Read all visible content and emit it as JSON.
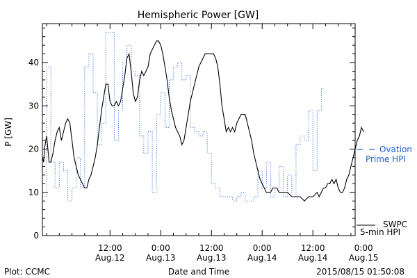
{
  "chart_data": {
    "type": "line",
    "title": "Hemispheric Power [GW]",
    "ylabel": "P [GW]",
    "xlabel": "Date and Time",
    "ylim": [
      0,
      49
    ],
    "yticks": [
      0,
      10,
      20,
      30,
      40
    ],
    "xlim_hours": [
      -4,
      70
    ],
    "xticks": [
      {
        "hour": 12,
        "time": "12:00",
        "date": "Aug.12"
      },
      {
        "hour": 24,
        "time": "0:00",
        "date": "Aug.13"
      },
      {
        "hour": 36,
        "time": "12:00",
        "date": "Aug.13"
      },
      {
        "hour": 48,
        "time": "0:00",
        "date": "Aug.14"
      },
      {
        "hour": 60,
        "time": "12:00",
        "date": "Aug.14"
      },
      {
        "hour": 72,
        "time": "0:00",
        "date": "Aug.15"
      }
    ],
    "series": [
      {
        "name": "SWPC 5-min HPI",
        "label_line1": "SWPC",
        "label_line2": "5-min HPI",
        "color": "#000000",
        "style": "solid",
        "points": [
          [
            -4,
            18
          ],
          [
            -3.7,
            17
          ],
          [
            -3.5,
            20
          ],
          [
            -3.2,
            22
          ],
          [
            -3,
            23
          ],
          [
            -2.7,
            20
          ],
          [
            -2.4,
            17
          ],
          [
            -2,
            17
          ],
          [
            -1.5,
            19
          ],
          [
            -1,
            22
          ],
          [
            -0.5,
            24
          ],
          [
            0,
            25
          ],
          [
            0.5,
            22
          ],
          [
            1,
            24
          ],
          [
            1.5,
            26
          ],
          [
            2,
            27
          ],
          [
            2.5,
            26
          ],
          [
            3,
            22
          ],
          [
            3.5,
            18
          ],
          [
            4,
            16
          ],
          [
            4.5,
            14
          ],
          [
            5,
            13
          ],
          [
            5.5,
            12
          ],
          [
            6,
            11
          ],
          [
            6.5,
            11
          ],
          [
            7,
            13
          ],
          [
            7.5,
            14
          ],
          [
            8,
            16
          ],
          [
            8.5,
            18
          ],
          [
            9,
            21
          ],
          [
            9.5,
            25
          ],
          [
            10,
            29
          ],
          [
            10.5,
            32
          ],
          [
            11,
            35
          ],
          [
            11.5,
            35
          ],
          [
            12,
            31
          ],
          [
            12.5,
            30
          ],
          [
            13,
            30
          ],
          [
            13.5,
            31
          ],
          [
            14,
            30
          ],
          [
            14.5,
            31
          ],
          [
            15,
            34
          ],
          [
            15.5,
            37
          ],
          [
            16,
            41
          ],
          [
            16.5,
            42
          ],
          [
            17,
            38
          ],
          [
            17.5,
            33
          ],
          [
            18,
            31
          ],
          [
            18.5,
            32
          ],
          [
            19,
            36
          ],
          [
            19.5,
            38
          ],
          [
            20,
            37
          ],
          [
            20.5,
            38
          ],
          [
            21,
            39
          ],
          [
            21.5,
            42
          ],
          [
            22,
            43
          ],
          [
            22.5,
            44
          ],
          [
            23,
            45
          ],
          [
            23.5,
            45
          ],
          [
            24,
            44
          ],
          [
            24.5,
            42
          ],
          [
            25,
            39
          ],
          [
            25.5,
            36
          ],
          [
            26,
            32
          ],
          [
            26.5,
            29
          ],
          [
            27,
            27
          ],
          [
            27.5,
            25
          ],
          [
            28,
            24
          ],
          [
            28.5,
            23
          ],
          [
            29,
            21
          ],
          [
            29.5,
            22
          ],
          [
            30,
            25
          ],
          [
            30.5,
            28
          ],
          [
            31,
            31
          ],
          [
            31.5,
            33
          ],
          [
            32,
            35
          ],
          [
            32.5,
            37
          ],
          [
            33,
            39
          ],
          [
            33.5,
            40
          ],
          [
            34,
            41
          ],
          [
            34.5,
            42
          ],
          [
            35,
            42
          ],
          [
            35.5,
            42
          ],
          [
            36,
            42
          ],
          [
            36.5,
            42
          ],
          [
            37,
            41
          ],
          [
            37.5,
            39
          ],
          [
            38,
            35
          ],
          [
            38.5,
            30
          ],
          [
            39,
            27
          ],
          [
            39.5,
            24
          ],
          [
            40,
            25
          ],
          [
            40.5,
            24
          ],
          [
            41,
            25
          ],
          [
            41.5,
            24
          ],
          [
            42,
            26
          ],
          [
            42.5,
            27
          ],
          [
            43,
            28
          ],
          [
            43.5,
            28
          ],
          [
            44,
            28
          ],
          [
            44.5,
            26
          ],
          [
            45,
            24
          ],
          [
            45.5,
            22
          ],
          [
            46,
            19
          ],
          [
            46.5,
            17
          ],
          [
            47,
            15
          ],
          [
            47.5,
            13
          ],
          [
            48,
            12
          ],
          [
            48.5,
            11
          ],
          [
            49,
            10
          ],
          [
            49.5,
            10
          ],
          [
            50,
            10
          ],
          [
            50.5,
            11
          ],
          [
            51,
            11
          ],
          [
            51.5,
            11
          ],
          [
            52,
            10
          ],
          [
            52.5,
            10
          ],
          [
            53,
            10
          ],
          [
            54,
            10
          ],
          [
            55,
            9
          ],
          [
            56,
            9
          ],
          [
            57,
            9
          ],
          [
            58,
            8
          ],
          [
            59,
            9
          ],
          [
            60,
            9
          ],
          [
            61,
            10
          ],
          [
            61.5,
            9
          ],
          [
            62,
            10
          ],
          [
            62.5,
            11
          ],
          [
            63,
            11
          ],
          [
            63.5,
            12
          ],
          [
            64,
            12
          ],
          [
            64.5,
            13
          ],
          [
            65,
            12
          ],
          [
            65.5,
            13
          ],
          [
            66,
            11
          ],
          [
            66.5,
            10
          ],
          [
            67,
            10
          ],
          [
            67.5,
            11
          ],
          [
            68,
            13
          ],
          [
            68.5,
            14
          ],
          [
            69,
            16
          ],
          [
            69.5,
            18
          ],
          [
            70,
            20
          ],
          [
            70.5,
            22
          ],
          [
            71,
            23
          ],
          [
            71.5,
            25
          ],
          [
            72,
            24
          ]
        ]
      },
      {
        "name": "Ovation Prime HPI",
        "label_line1": "Ovation",
        "label_line2": "Prime HPI",
        "color": "#1f5fd0",
        "style": "dotted",
        "steps": [
          [
            -4,
            9
          ],
          [
            -3,
            39
          ],
          [
            -2,
            17
          ],
          [
            -1,
            11
          ],
          [
            0,
            17
          ],
          [
            1,
            15
          ],
          [
            2,
            8
          ],
          [
            3,
            11
          ],
          [
            4,
            18
          ],
          [
            5,
            11
          ],
          [
            6,
            39
          ],
          [
            7,
            42
          ],
          [
            8,
            33
          ],
          [
            9,
            21
          ],
          [
            10,
            26
          ],
          [
            11,
            47
          ],
          [
            13,
            22
          ],
          [
            14,
            29
          ],
          [
            15,
            40
          ],
          [
            16,
            44
          ],
          [
            17,
            38
          ],
          [
            18,
            37
          ],
          [
            19,
            23
          ],
          [
            20,
            19
          ],
          [
            21,
            24
          ],
          [
            22,
            10
          ],
          [
            23,
            28
          ],
          [
            24,
            33
          ],
          [
            25,
            25
          ],
          [
            26,
            36
          ],
          [
            27,
            39
          ],
          [
            28,
            40
          ],
          [
            29,
            36
          ],
          [
            30,
            37
          ],
          [
            31,
            25
          ],
          [
            32,
            24
          ],
          [
            33,
            23
          ],
          [
            34,
            24
          ],
          [
            35,
            19
          ],
          [
            36,
            12
          ],
          [
            37,
            11
          ],
          [
            38,
            9
          ],
          [
            39,
            9
          ],
          [
            40,
            9
          ],
          [
            41,
            8
          ],
          [
            42,
            9
          ],
          [
            43,
            10
          ],
          [
            44,
            8
          ],
          [
            45,
            8
          ],
          [
            46,
            9
          ],
          [
            47,
            15
          ],
          [
            48,
            11
          ],
          [
            49,
            17
          ],
          [
            50,
            9
          ],
          [
            51,
            11
          ],
          [
            52,
            16
          ],
          [
            53,
            9
          ],
          [
            54,
            14
          ],
          [
            55,
            9
          ],
          [
            56,
            21
          ],
          [
            57,
            23
          ],
          [
            58,
            22
          ],
          [
            59,
            29
          ],
          [
            60,
            15
          ],
          [
            61,
            29
          ],
          [
            62,
            34
          ],
          [
            62.5,
            34
          ]
        ]
      }
    ]
  },
  "footer": {
    "left": "Plot: CCMC",
    "right": "2015/08/15 01:50:08"
  }
}
